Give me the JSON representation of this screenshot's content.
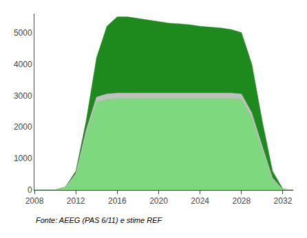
{
  "chart_data": {
    "type": "area",
    "x": [
      2008,
      2009,
      2010,
      2011,
      2012,
      2013,
      2014,
      2015,
      2016,
      2017,
      2018,
      2019,
      2020,
      2021,
      2022,
      2023,
      2024,
      2025,
      2026,
      2027,
      2028,
      2029,
      2030,
      2031,
      2032,
      2033
    ],
    "series": [
      {
        "color": "#1e8a1e",
        "values": [
          0,
          0,
          10,
          100,
          600,
          2200,
          4200,
          5200,
          5500,
          5500,
          5450,
          5400,
          5350,
          5300,
          5280,
          5250,
          5200,
          5180,
          5150,
          5100,
          5000,
          4000,
          2200,
          600,
          30,
          0
        ]
      },
      {
        "color": "#7ed87e",
        "values": [
          0,
          0,
          7,
          75,
          480,
          1780,
          2800,
          2890,
          2910,
          2920,
          2920,
          2920,
          2920,
          2920,
          2920,
          2920,
          2920,
          2920,
          2920,
          2920,
          2890,
          2310,
          1290,
          330,
          12,
          0
        ]
      },
      {
        "color": "#c0c0c0",
        "values": [
          0,
          0,
          8,
          85,
          520,
          1900,
          2950,
          3050,
          3080,
          3080,
          3080,
          3080,
          3080,
          3080,
          3080,
          3080,
          3080,
          3080,
          3080,
          3080,
          3050,
          2450,
          1400,
          380,
          15,
          0
        ],
        "base": [
          0,
          0,
          7,
          75,
          480,
          1780,
          2800,
          2890,
          2910,
          2920,
          2920,
          2920,
          2920,
          2920,
          2920,
          2920,
          2920,
          2920,
          2920,
          2920,
          2890,
          2310,
          1290,
          330,
          12,
          0
        ]
      }
    ],
    "xlim": [
      2008,
      2033
    ],
    "xticks": [
      2008,
      2012,
      2016,
      2020,
      2024,
      2028,
      2032
    ],
    "ylim": [
      0,
      5600
    ],
    "yticks": [
      0,
      1000,
      2000,
      3000,
      4000,
      5000
    ],
    "grid": false,
    "annotations": [
      "Fonte: AEEG (PAS 6/11) e stime REF"
    ]
  }
}
